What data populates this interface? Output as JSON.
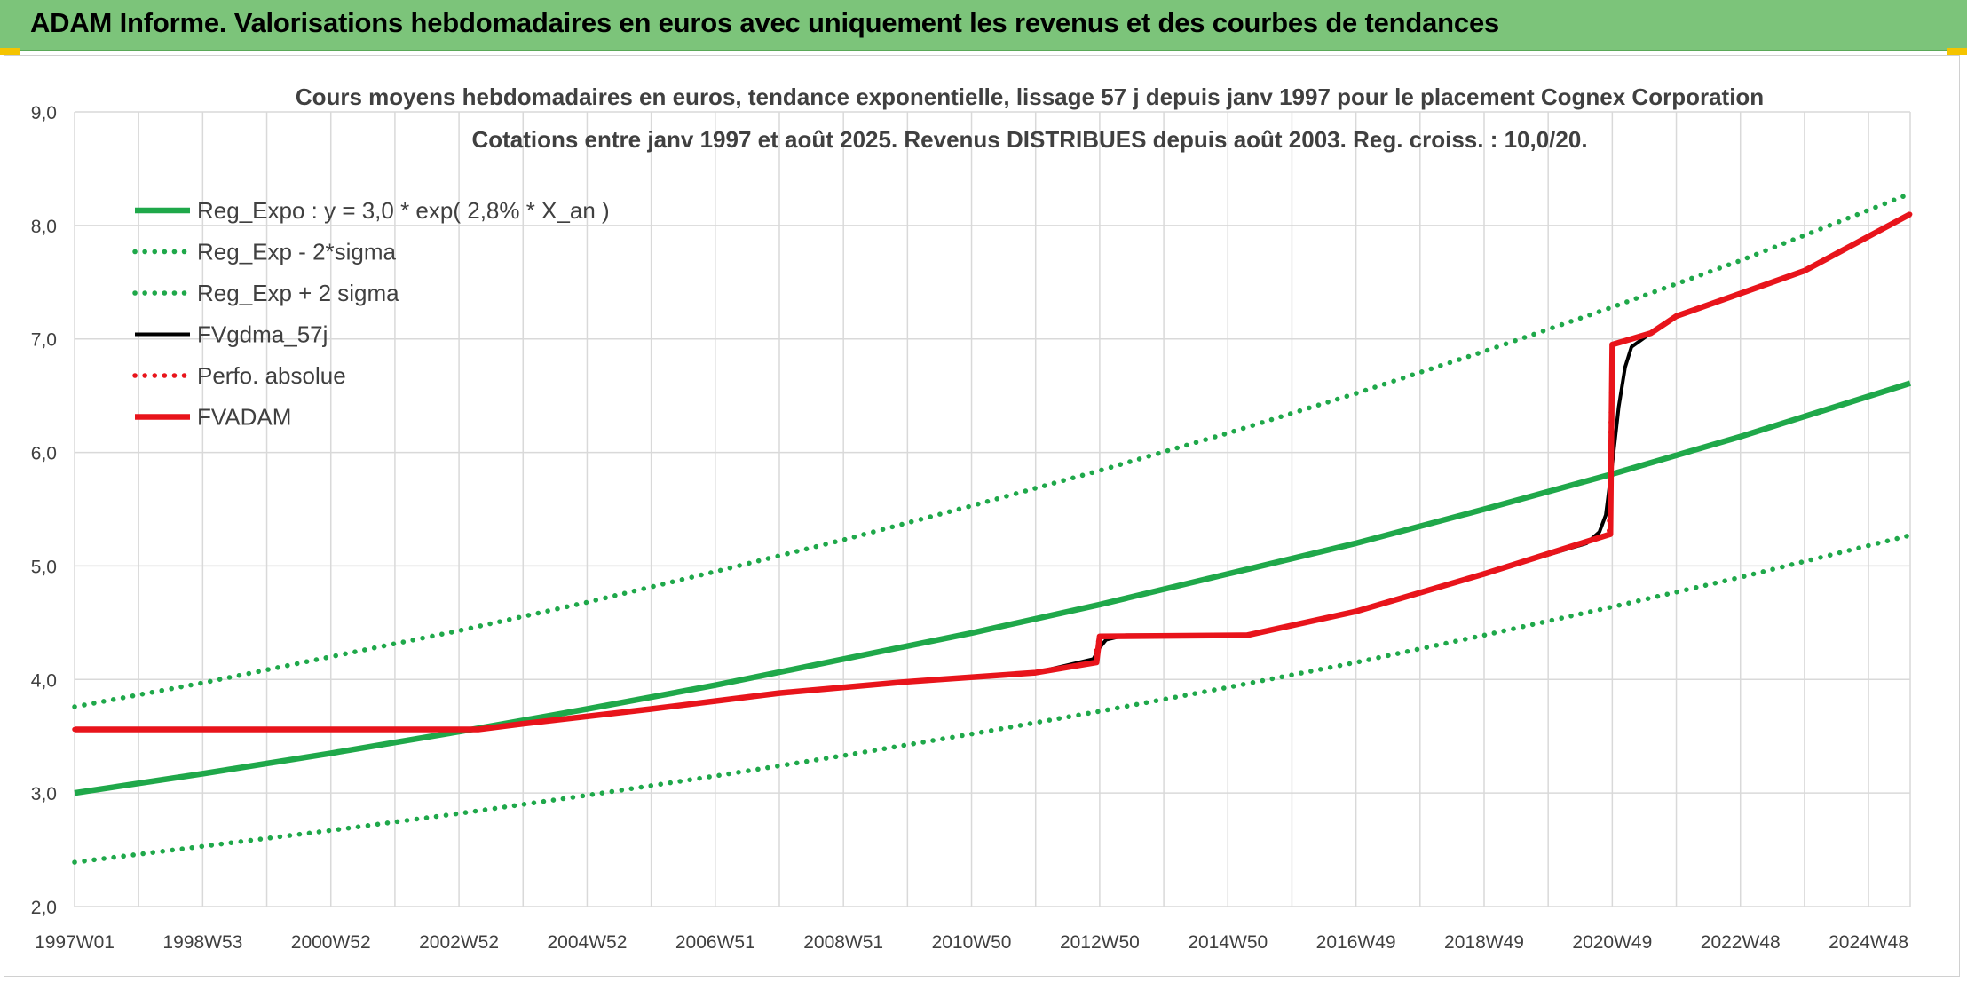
{
  "header": {
    "title": "ADAM Informe. Valorisations hebdomadaires en euros avec uniquement les revenus et des courbes de tendances"
  },
  "colors": {
    "header_bg": "#7cc47a",
    "reg_green": "#1fa84a",
    "fv_black": "#000000",
    "adam_red": "#e8141b",
    "grid": "#d9d9d9",
    "axis_text": "#404040"
  },
  "chart_data": {
    "type": "line",
    "title": "Cours moyens hebdomadaires en euros, tendance exponentielle, lissage 57 j depuis janv 1997 pour le placement Cognex Corporation",
    "subtitle": "Cotations entre janv 1997 et août 2025. Revenus DISTRIBUES depuis août 2003. Reg. croiss. : 10,0/20.",
    "xlabel": "",
    "ylabel": "",
    "x_range": [
      1997.0,
      2025.65
    ],
    "ylim": [
      2.0,
      9.0
    ],
    "y_ticks": [
      "2,0",
      "3,0",
      "4,0",
      "5,0",
      "6,0",
      "7,0",
      "8,0",
      "9,0"
    ],
    "y_tick_values": [
      2,
      3,
      4,
      5,
      6,
      7,
      8,
      9
    ],
    "x_ticks": [
      "1997W01",
      "1998W53",
      "2000W52",
      "2002W52",
      "2004W52",
      "2006W51",
      "2008W51",
      "2010W50",
      "2012W50",
      "2014W50",
      "2016W49",
      "2018W49",
      "2020W49",
      "2022W48",
      "2024W48"
    ],
    "x_tick_values": [
      1997.0,
      1999.0,
      2001.0,
      2003.0,
      2005.0,
      2007.0,
      2009.0,
      2011.0,
      2013.0,
      2015.0,
      2017.0,
      2019.0,
      2021.0,
      2023.0,
      2025.0
    ],
    "grid": true,
    "legend_position": "top-left",
    "series": [
      {
        "name": "Reg_Expo : y = 3,0 * exp( 2,8% *  X_an )",
        "style": "solid",
        "color": "#1fa84a",
        "x": [
          1997,
          1999,
          2001,
          2003,
          2005,
          2007,
          2009,
          2011,
          2013,
          2015,
          2017,
          2019,
          2021,
          2023,
          2025.65
        ],
        "values": [
          3.0,
          3.17,
          3.35,
          3.54,
          3.74,
          3.95,
          4.18,
          4.41,
          4.66,
          4.93,
          5.2,
          5.5,
          5.81,
          6.14,
          6.61
        ]
      },
      {
        "name": "Reg_Exp - 2*sigma",
        "style": "dotted",
        "color": "#1fa84a",
        "x": [
          1997,
          1999,
          2001,
          2003,
          2005,
          2007,
          2009,
          2011,
          2013,
          2015,
          2017,
          2019,
          2021,
          2023,
          2025.65
        ],
        "values": [
          2.39,
          2.53,
          2.67,
          2.82,
          2.98,
          3.15,
          3.33,
          3.52,
          3.72,
          3.93,
          4.15,
          4.39,
          4.64,
          4.9,
          5.27
        ]
      },
      {
        "name": "Reg_Exp + 2 sigma",
        "style": "dotted",
        "color": "#1fa84a",
        "x": [
          1997,
          1999,
          2001,
          2003,
          2005,
          2007,
          2009,
          2011,
          2013,
          2015,
          2017,
          2019,
          2021,
          2023,
          2025.65
        ],
        "values": [
          3.76,
          3.97,
          4.2,
          4.43,
          4.68,
          4.95,
          5.23,
          5.53,
          5.84,
          6.17,
          6.52,
          6.89,
          7.28,
          7.69,
          8.28
        ]
      },
      {
        "name": "FVgdma_57j",
        "style": "solid",
        "color": "#000000",
        "x": [
          1997,
          2003.3,
          2004,
          2006,
          2008,
          2010,
          2012,
          2012.9,
          2013.0,
          2013.1,
          2013.4,
          2015.3,
          2017,
          2019,
          2020.6,
          2020.8,
          2020.9,
          2021.0,
          2021.1,
          2021.2,
          2021.3,
          2021.6,
          2022,
          2024,
          2025.65
        ],
        "values": [
          3.56,
          3.56,
          3.61,
          3.74,
          3.88,
          3.98,
          4.06,
          4.18,
          4.28,
          4.35,
          4.39,
          4.39,
          4.6,
          4.93,
          5.2,
          5.3,
          5.45,
          5.9,
          6.4,
          6.75,
          6.93,
          7.05,
          7.2,
          7.6,
          8.1
        ]
      },
      {
        "name": "Perfo. absolue",
        "style": "dotted",
        "color": "#e8141b",
        "x": [
          1997,
          2003.3,
          2004,
          2006,
          2008,
          2010,
          2012,
          2012.9,
          2013.0,
          2015.3,
          2017,
          2019,
          2020.95,
          2021.0,
          2021.6,
          2022,
          2024,
          2025.65
        ],
        "values": [
          3.56,
          3.56,
          3.61,
          3.74,
          3.88,
          3.98,
          4.06,
          4.15,
          4.38,
          4.39,
          4.6,
          4.93,
          5.28,
          6.95,
          7.05,
          7.2,
          7.6,
          8.1
        ]
      },
      {
        "name": "FVADAM",
        "style": "solid",
        "color": "#e8141b",
        "x": [
          1997,
          2003.3,
          2004,
          2006,
          2008,
          2010,
          2012,
          2012.95,
          2013.0,
          2015.3,
          2017,
          2019,
          2020.97,
          2021.0,
          2021.6,
          2022,
          2024,
          2025.65
        ],
        "values": [
          3.56,
          3.56,
          3.61,
          3.74,
          3.88,
          3.98,
          4.06,
          4.15,
          4.38,
          4.39,
          4.6,
          4.93,
          5.28,
          6.95,
          7.05,
          7.2,
          7.6,
          8.1
        ]
      }
    ]
  }
}
